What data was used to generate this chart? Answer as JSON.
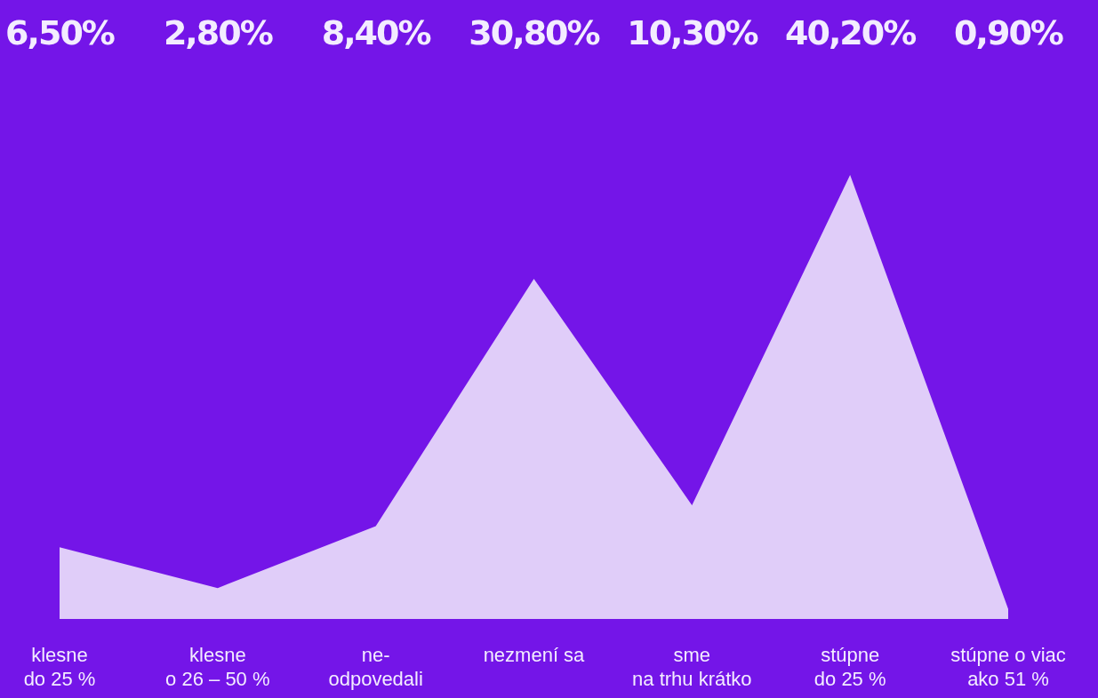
{
  "chart_data": {
    "type": "area",
    "categories": [
      "klesne\ndo 25 %",
      "klesne\no 26 – 50 %",
      "ne-\nodpovedali",
      "nezmení sa",
      "sme\nna trhu krátko",
      "stúpne\ndo 25 %",
      "stúpne o viac\nako 51 %"
    ],
    "values": [
      6.5,
      2.8,
      8.4,
      30.8,
      10.3,
      40.2,
      0.9
    ],
    "value_labels": [
      "6,50%",
      "2,80%",
      "8,40%",
      "30,80%",
      "10,30%",
      "40,20%",
      "0,90%"
    ],
    "color": "#e0cdf9"
  }
}
